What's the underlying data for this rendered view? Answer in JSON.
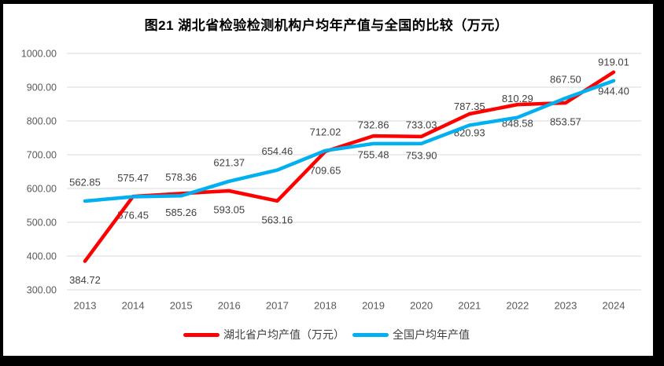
{
  "chart_data": {
    "type": "line",
    "title": "图21 湖北省检验检测机构户均年产值与全国的比较（万元）",
    "categories": [
      "2013",
      "2014",
      "2015",
      "2016",
      "2017",
      "2018",
      "2019",
      "2020",
      "2021",
      "2022",
      "2023",
      "2024"
    ],
    "series": [
      {
        "name": "湖北省户均产值（万元）",
        "color": "#FF0000",
        "label_position": "below",
        "values": [
          384.72,
          576.45,
          585.26,
          593.05,
          563.16,
          709.65,
          755.48,
          753.9,
          820.93,
          848.58,
          853.57,
          944.4
        ]
      },
      {
        "name": "全国户均年产值",
        "color": "#00B0F0",
        "label_position": "above",
        "values": [
          562.85,
          575.47,
          578.36,
          621.37,
          654.46,
          712.02,
          732.86,
          733.03,
          787.35,
          810.29,
          867.5,
          919.01
        ]
      }
    ],
    "y_axis": {
      "min": 300,
      "max": 1000,
      "step": 100,
      "tick_labels": [
        "1000.00",
        "900.00",
        "800.00",
        "700.00",
        "600.00",
        "500.00",
        "400.00",
        "300.00"
      ]
    },
    "legend_position": "bottom",
    "grid": true,
    "colors": {
      "gridline": "#D9D9D9",
      "axis_text": "#595959",
      "data_label_text": "#404040",
      "title_text": "#000000",
      "frame": "#000000",
      "background": "#FFFFFF"
    }
  }
}
